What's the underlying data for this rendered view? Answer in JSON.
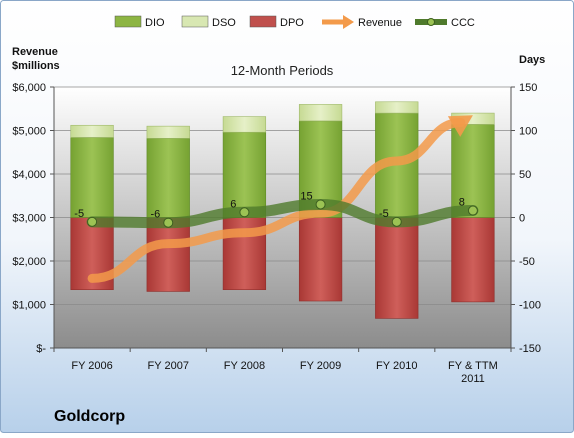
{
  "chart_data": {
    "type": "bar",
    "title": "12-Month Periods",
    "company": "Goldcorp",
    "y_left_label_line1": "Revenue",
    "y_left_label_line2": "$millions",
    "y_right_label": "Days",
    "categories": [
      [
        "FY 2006"
      ],
      [
        "FY 2007"
      ],
      [
        "FY 2008"
      ],
      [
        "FY 2009"
      ],
      [
        "FY 2010"
      ],
      [
        "FY & TTM",
        "2011"
      ]
    ],
    "y_left_ticks": [
      "$-",
      "$1,000",
      "$2,000",
      "$3,000",
      "$4,000",
      "$5,000",
      "$6,000"
    ],
    "y_left_range": [
      0,
      6000
    ],
    "y_right_ticks": [
      "-150",
      "-100",
      "-50",
      "0",
      "50",
      "100",
      "150"
    ],
    "y_right_range": [
      -150,
      150
    ],
    "grid": true,
    "legend_position": "top",
    "legend": [
      {
        "label": "DIO",
        "icon": "bar",
        "color": "#8db543"
      },
      {
        "label": "DSO",
        "icon": "bar",
        "color": "#d8e7b2"
      },
      {
        "label": "DPO",
        "icon": "bar",
        "color": "#c0504d"
      },
      {
        "label": "Revenue",
        "icon": "arrow",
        "color": "#f39a4a"
      },
      {
        "label": "CCC",
        "icon": "line",
        "color": "#4f7a2c"
      }
    ],
    "series": [
      {
        "name": "DIO",
        "axis": "right",
        "values": [
          92,
          91,
          98,
          111,
          120,
          107
        ]
      },
      {
        "name": "DSO",
        "axis": "right",
        "values": [
          14,
          14,
          18,
          19,
          13,
          13
        ]
      },
      {
        "name": "DPO",
        "axis": "right",
        "values": [
          -83,
          -85,
          -83,
          -96,
          -116,
          -97
        ]
      },
      {
        "name": "CCC",
        "axis": "right",
        "values": [
          -5,
          -6,
          6,
          15,
          -5,
          8
        ],
        "labels": [
          "-5",
          "-6",
          "6",
          "15",
          "-5",
          "8"
        ]
      },
      {
        "name": "Revenue",
        "axis": "left",
        "values": [
          1600,
          2400,
          2650,
          3100,
          4300,
          5350
        ]
      }
    ]
  }
}
